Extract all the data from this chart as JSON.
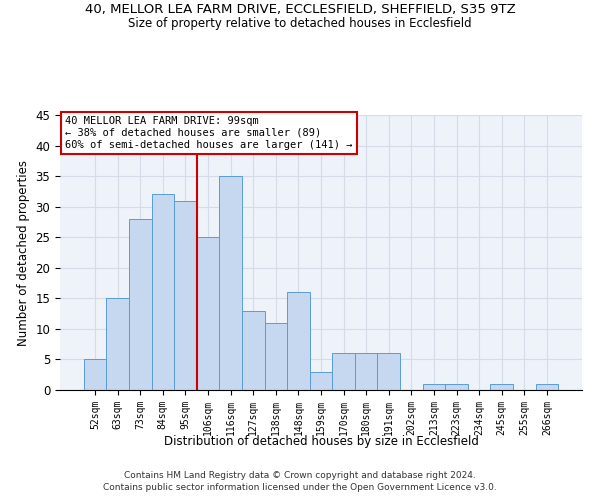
{
  "title_line1": "40, MELLOR LEA FARM DRIVE, ECCLESFIELD, SHEFFIELD, S35 9TZ",
  "title_line2": "Size of property relative to detached houses in Ecclesfield",
  "xlabel": "Distribution of detached houses by size in Ecclesfield",
  "ylabel": "Number of detached properties",
  "footer_line1": "Contains HM Land Registry data © Crown copyright and database right 2024.",
  "footer_line2": "Contains public sector information licensed under the Open Government Licence v3.0.",
  "bin_labels": [
    "52sqm",
    "63sqm",
    "73sqm",
    "84sqm",
    "95sqm",
    "106sqm",
    "116sqm",
    "127sqm",
    "138sqm",
    "148sqm",
    "159sqm",
    "170sqm",
    "180sqm",
    "191sqm",
    "202sqm",
    "213sqm",
    "223sqm",
    "234sqm",
    "245sqm",
    "255sqm",
    "266sqm"
  ],
  "values": [
    5,
    15,
    28,
    32,
    31,
    25,
    35,
    13,
    11,
    16,
    3,
    6,
    6,
    6,
    0,
    1,
    1,
    0,
    1,
    0,
    1
  ],
  "bar_color": "#c5d8f0",
  "bar_edge_color": "#5b9bd5",
  "red_line_x": 4.5,
  "annotation_text_line1": "40 MELLOR LEA FARM DRIVE: 99sqm",
  "annotation_text_line2": "← 38% of detached houses are smaller (89)",
  "annotation_text_line3": "60% of semi-detached houses are larger (141) →",
  "annotation_box_color": "#ffffff",
  "annotation_box_edge": "#cc0000",
  "ylim": [
    0,
    45
  ],
  "yticks": [
    0,
    5,
    10,
    15,
    20,
    25,
    30,
    35,
    40,
    45
  ],
  "grid_color": "#d5dce8",
  "background_color": "#eef2f9",
  "title1_fontsize": 9.5,
  "title2_fontsize": 8.5
}
